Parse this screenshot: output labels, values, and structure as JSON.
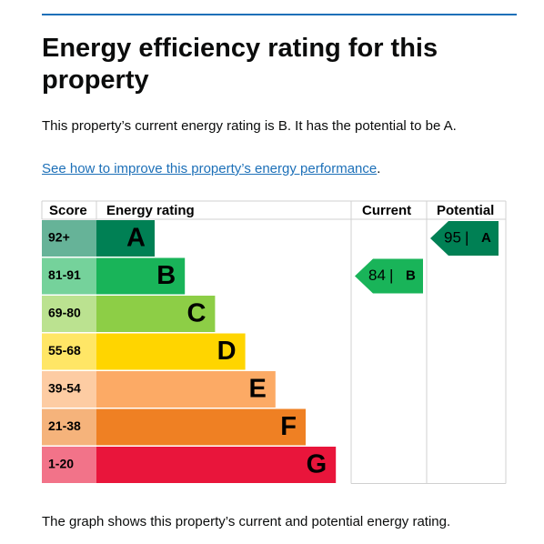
{
  "heading": "Energy efficiency rating for this property",
  "intro": "This property’s current energy rating is B. It has the potential to be A.",
  "link": {
    "text": "See how to improve this property’s energy performance",
    "after": "."
  },
  "table": {
    "headers": [
      "Score",
      "Energy rating",
      "Current",
      "Potential"
    ],
    "rows": [
      {
        "score": "92+",
        "band": "A",
        "color": "#008054"
      },
      {
        "score": "81-91",
        "band": "B",
        "color": "#19b459"
      },
      {
        "score": "69-80",
        "band": "C",
        "color": "#8dce46"
      },
      {
        "score": "55-68",
        "band": "D",
        "color": "#ffd500"
      },
      {
        "score": "39-54",
        "band": "E",
        "color": "#fcaa65"
      },
      {
        "score": "21-38",
        "band": "F",
        "color": "#ef8023"
      },
      {
        "score": "1-20",
        "band": "G",
        "color": "#e9153b"
      }
    ],
    "current": {
      "score": 84,
      "separator": "|",
      "band": "B"
    },
    "potential": {
      "score": 95,
      "separator": "|",
      "band": "A"
    }
  },
  "footer": "The graph shows this property’s current and potential energy rating."
}
